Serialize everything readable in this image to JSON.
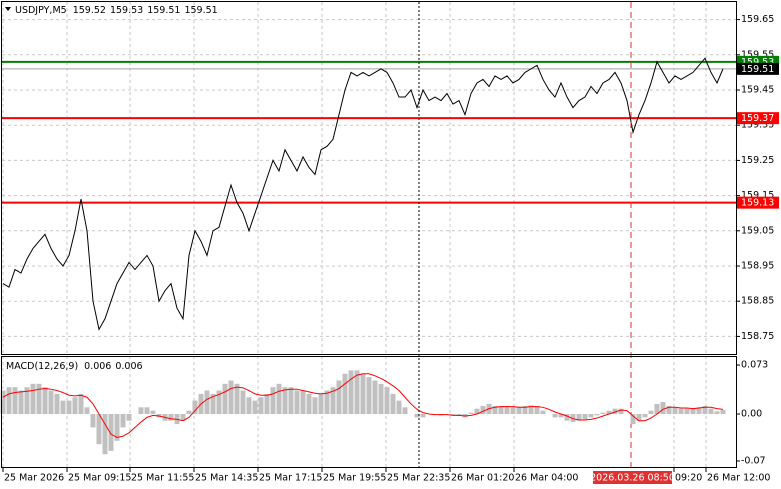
{
  "chart_data": [
    {
      "type": "line",
      "title": "USDJPY,M5",
      "quote": [
        159.52,
        159.53,
        159.51,
        159.51
      ],
      "color": "#000000",
      "xlim": [
        0,
        122
      ],
      "ylim": [
        158.7,
        159.7
      ],
      "yticks": [
        159.65,
        159.55,
        159.45,
        159.35,
        159.25,
        159.15,
        159.05,
        158.95,
        158.85,
        158.75
      ],
      "xticks": [
        {
          "value": 0,
          "label": "25 Mar 2026"
        },
        {
          "value": 10.67,
          "label": "25 Mar 09:15"
        },
        {
          "value": 21.17,
          "label": "25 Mar 11:55"
        },
        {
          "value": 31.83,
          "label": "25 Mar 14:35"
        },
        {
          "value": 42.5,
          "label": "25 Mar 17:15"
        },
        {
          "value": 53.17,
          "label": "25 Mar 19:55"
        },
        {
          "value": 63.83,
          "label": "25 Mar 22:35"
        },
        {
          "value": 74.5,
          "label": "26 Mar 01:20"
        },
        {
          "value": 85.17,
          "label": "26 Mar 04:00"
        },
        {
          "value": 111.83,
          "label": "09:20"
        },
        {
          "value": 117.17,
          "label": "26 Mar 12:00"
        }
      ],
      "cursor": {
        "value": 104.67,
        "label": "2026.03.26 08:50"
      },
      "grid": true,
      "levels": [
        {
          "value": 159.53,
          "color": "#008000"
        },
        {
          "value": 159.37,
          "color": "#ff0000"
        },
        {
          "value": 159.13,
          "color": "#ff0000"
        }
      ],
      "last_price": 159.51,
      "values": [
        158.9,
        158.89,
        158.94,
        158.93,
        158.97,
        159.0,
        159.02,
        159.04,
        159.0,
        158.97,
        158.95,
        158.98,
        159.05,
        159.14,
        159.05,
        158.85,
        158.77,
        158.8,
        158.85,
        158.9,
        158.93,
        158.96,
        158.94,
        158.96,
        158.98,
        158.95,
        158.85,
        158.88,
        158.9,
        158.83,
        158.8,
        158.98,
        159.05,
        159.02,
        158.98,
        159.05,
        159.06,
        159.12,
        159.18,
        159.13,
        159.1,
        159.05,
        159.1,
        159.15,
        159.2,
        159.25,
        159.22,
        159.28,
        159.25,
        159.22,
        159.26,
        159.23,
        159.21,
        159.28,
        159.29,
        159.31,
        159.38,
        159.45,
        159.5,
        159.49,
        159.5,
        159.49,
        159.5,
        159.51,
        159.5,
        159.47,
        159.43,
        159.43,
        159.45,
        159.4,
        159.45,
        159.42,
        159.43,
        159.42,
        159.44,
        159.41,
        159.42,
        159.38,
        159.44,
        159.47,
        159.48,
        159.46,
        159.49,
        159.48,
        159.49,
        159.47,
        159.48,
        159.5,
        159.51,
        159.52,
        159.48,
        159.45,
        159.43,
        159.47,
        159.43,
        159.4,
        159.42,
        159.43,
        159.46,
        159.44,
        159.47,
        159.48,
        159.5,
        159.47,
        159.42,
        159.33,
        159.38,
        159.42,
        159.47,
        159.53,
        159.5,
        159.47,
        159.49,
        159.48,
        159.49,
        159.5,
        159.52,
        159.54,
        159.5,
        159.47,
        159.51
      ]
    },
    {
      "type": "macd",
      "title": "MACD(12,26,9)",
      "quote": [
        0.006,
        0.006
      ],
      "xlim": [
        0,
        122
      ],
      "ylim": [
        -0.079,
        0.085
      ],
      "yticks": [
        0.073,
        {
          "value": 0,
          "label": "0.00"
        },
        -0.07
      ],
      "histogram": {
        "color": "#c0c0c0",
        "values": [
          0.035,
          0.04,
          0.04,
          0.035,
          0.04,
          0.045,
          0.045,
          0.04,
          0.035,
          0.03,
          0.02,
          0.02,
          0.025,
          0.03,
          0.01,
          -0.02,
          -0.045,
          -0.06,
          -0.055,
          -0.04,
          -0.02,
          -0.01,
          0,
          0.01,
          0.01,
          0.005,
          -0.005,
          -0.01,
          -0.01,
          -0.015,
          -0.01,
          0.005,
          0.02,
          0.03,
          0.035,
          0.03,
          0.035,
          0.045,
          0.05,
          0.045,
          0.035,
          0.025,
          0.02,
          0.025,
          0.03,
          0.04,
          0.045,
          0.04,
          0.04,
          0.035,
          0.035,
          0.03,
          0.025,
          0.03,
          0.035,
          0.04,
          0.05,
          0.06,
          0.065,
          0.065,
          0.06,
          0.055,
          0.05,
          0.045,
          0.04,
          0.03,
          0.02,
          0.01,
          0,
          -0.005,
          -0.005,
          0,
          0,
          -0.002,
          0,
          -0.002,
          -0.003,
          -0.005,
          0.002,
          0.008,
          0.012,
          0.015,
          0.012,
          0.012,
          0.012,
          0.01,
          0.01,
          0.012,
          0.013,
          0.012,
          0.005,
          0,
          -0.005,
          -0.005,
          -0.01,
          -0.012,
          -0.01,
          -0.008,
          -0.005,
          -0.002,
          0.002,
          0.005,
          0.008,
          0.008,
          0,
          -0.015,
          -0.01,
          -0.005,
          0.005,
          0.015,
          0.018,
          0.012,
          0.01,
          0.008,
          0.008,
          0.008,
          0.01,
          0.012,
          0.008,
          0.004,
          0.006
        ]
      },
      "signal": {
        "color": "#ff0000",
        "values": [
          0.025,
          0.03,
          0.032,
          0.033,
          0.034,
          0.035,
          0.037,
          0.038,
          0.037,
          0.035,
          0.032,
          0.028,
          0.027,
          0.028,
          0.025,
          0.015,
          0,
          -0.015,
          -0.03,
          -0.035,
          -0.033,
          -0.028,
          -0.02,
          -0.012,
          -0.005,
          -0.002,
          -0.003,
          -0.005,
          -0.007,
          -0.008,
          -0.01,
          -0.005,
          0.005,
          0.015,
          0.022,
          0.026,
          0.029,
          0.033,
          0.038,
          0.04,
          0.039,
          0.035,
          0.03,
          0.028,
          0.028,
          0.03,
          0.034,
          0.036,
          0.037,
          0.037,
          0.035,
          0.033,
          0.031,
          0.03,
          0.031,
          0.034,
          0.038,
          0.045,
          0.052,
          0.058,
          0.06,
          0.06,
          0.057,
          0.053,
          0.048,
          0.042,
          0.035,
          0.025,
          0.015,
          0.007,
          0.002,
          0,
          -0.001,
          -0.001,
          -0.001,
          -0.002,
          -0.002,
          -0.003,
          -0.002,
          0,
          0.004,
          0.008,
          0.01,
          0.011,
          0.011,
          0.011,
          0.01,
          0.01,
          0.011,
          0.011,
          0.01,
          0.007,
          0.003,
          0,
          -0.003,
          -0.007,
          -0.009,
          -0.009,
          -0.008,
          -0.006,
          -0.003,
          0,
          0.003,
          0.006,
          0.005,
          -0.003,
          -0.01,
          -0.01,
          -0.006,
          0,
          0.007,
          0.01,
          0.01,
          0.009,
          0.009,
          0.008,
          0.009,
          0.01,
          0.01,
          0.008,
          0.007
        ]
      }
    }
  ]
}
